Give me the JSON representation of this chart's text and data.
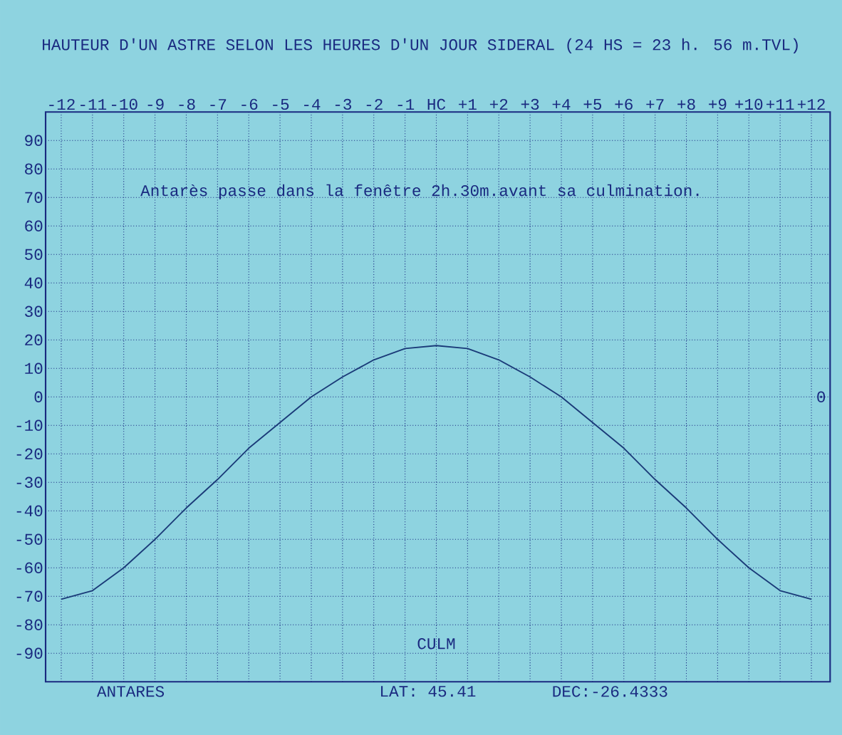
{
  "chart_data": {
    "type": "line",
    "title": "HAUTEUR D'UN ASTRE SELON LES HEURES D'UN JOUR SIDERAL (24 HS = 23 h. 56 m.TVL)",
    "x": [
      -12,
      -11,
      -10,
      -9,
      -8,
      -7,
      -6,
      -5,
      -4,
      -3,
      -2,
      -1,
      0,
      1,
      2,
      3,
      4,
      5,
      6,
      7,
      8,
      9,
      10,
      11,
      12
    ],
    "series": [
      {
        "color": "#1a3a78",
        "values": [
          -71,
          -68,
          -60,
          -50,
          -39,
          -29,
          -18,
          -9,
          0,
          7,
          13,
          17,
          18,
          17,
          13,
          7,
          0,
          -9,
          -18,
          -29,
          -39,
          -50,
          -60,
          -68,
          -71
        ]
      }
    ],
    "xlim": [
      -12.5,
      12.6
    ],
    "ylim": [
      -100,
      100
    ],
    "xticks": [
      -12,
      -11,
      -10,
      -9,
      -8,
      -7,
      -6,
      -5,
      -4,
      -3,
      -2,
      -1,
      {
        "value": 0,
        "label": "HC"
      },
      {
        "value": 1,
        "label": "+1"
      },
      {
        "value": 2,
        "label": "+2"
      },
      {
        "value": 3,
        "label": "+3"
      },
      {
        "value": 4,
        "label": "+4"
      },
      {
        "value": 5,
        "label": "+5"
      },
      {
        "value": 6,
        "label": "+6"
      },
      {
        "value": 7,
        "label": "+7"
      },
      {
        "value": 8,
        "label": "+8"
      },
      {
        "value": 9,
        "label": "+9"
      },
      {
        "value": 10,
        "label": "+10"
      },
      {
        "value": 11,
        "label": "+11"
      },
      {
        "value": 12,
        "label": "+12"
      }
    ],
    "yticks": [
      90,
      80,
      70,
      60,
      50,
      40,
      30,
      20,
      10,
      0,
      -10,
      -20,
      -30,
      -40,
      -50,
      -60,
      -70,
      -80,
      -90
    ],
    "grid": true,
    "marker": "none",
    "line_style": "solid",
    "annotations": [
      "Antarès passe dans la fenêtre 2h.30m.avant sa culmination.",
      "0",
      "CULM",
      "ANTARES",
      "LAT: 45.41",
      "DEC:-26.4333"
    ]
  }
}
